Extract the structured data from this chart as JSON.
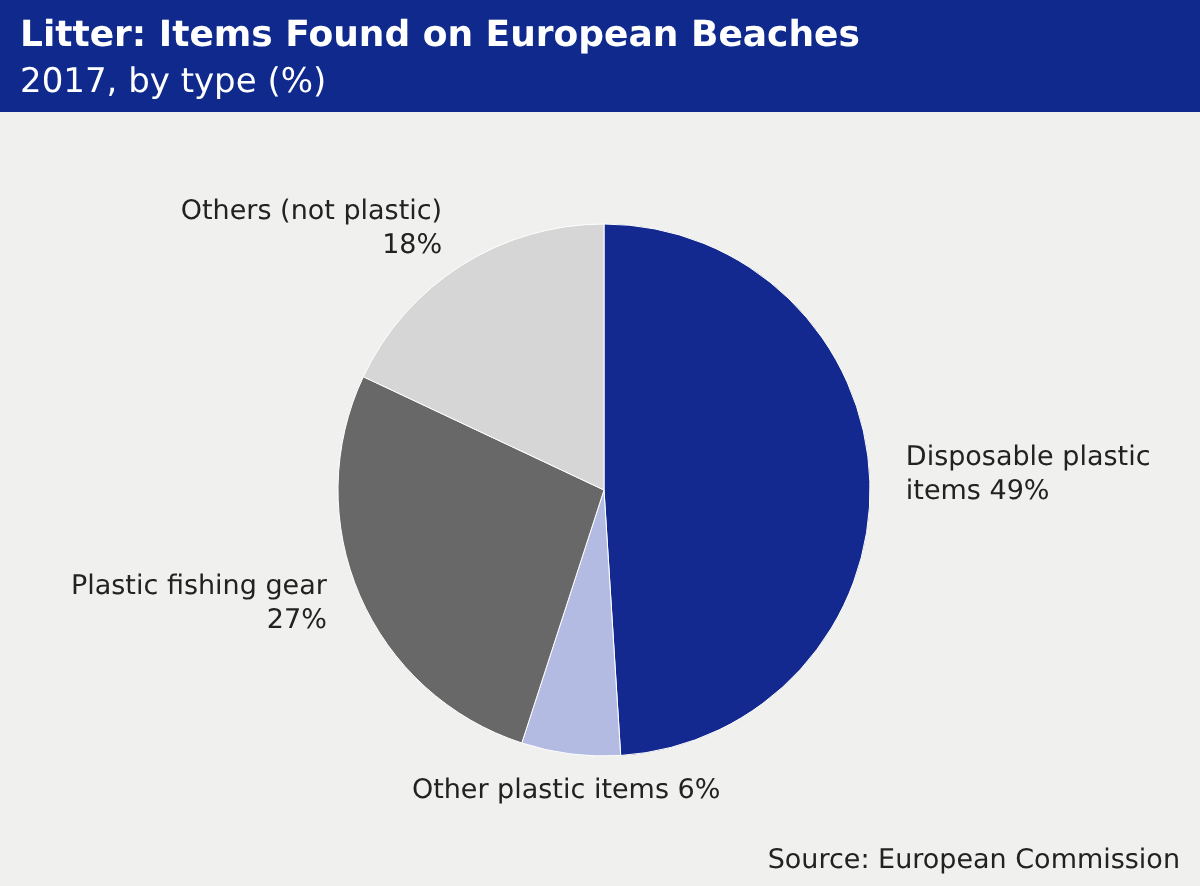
{
  "chart_data": {
    "type": "pie",
    "title": "Litter: Items Found on European Beaches",
    "subtitle": "2017, by type (%)",
    "categories": [
      "Disposable plastic items",
      "Other plastic items",
      "Plastic fishing gear",
      "Others (not plastic)"
    ],
    "values": [
      49,
      6,
      27,
      18
    ],
    "colors": [
      "#13298f",
      "#b3bbe3",
      "#686868",
      "#d6d6d6"
    ],
    "value_labels": [
      "49%",
      "6%",
      "27%",
      "18%"
    ],
    "annotations": [
      "Source: European Commission"
    ]
  }
}
